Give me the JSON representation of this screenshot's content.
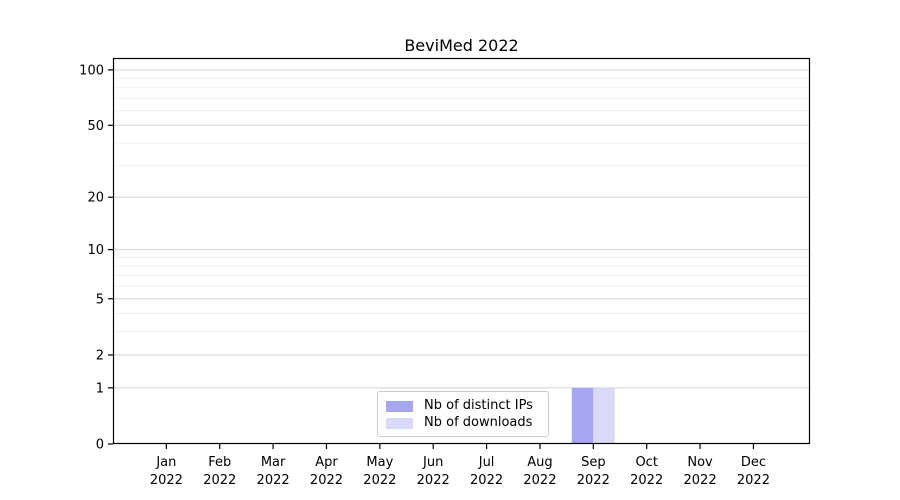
{
  "chart_data": {
    "type": "bar",
    "title": "BeviMed 2022",
    "categories": [
      "Jan",
      "Feb",
      "Mar",
      "Apr",
      "May",
      "Jun",
      "Jul",
      "Aug",
      "Sep",
      "Oct",
      "Nov",
      "Dec"
    ],
    "x_year_label": "2022",
    "series": [
      {
        "name": "Nb of distinct IPs",
        "color": "#a5a5f0",
        "values": [
          0,
          0,
          0,
          0,
          0,
          0,
          0,
          0,
          1,
          0,
          0,
          0
        ]
      },
      {
        "name": "Nb of downloads",
        "color": "#dadaf8",
        "values": [
          0,
          0,
          0,
          0,
          0,
          0,
          0,
          0,
          1,
          0,
          0,
          0
        ]
      }
    ],
    "y_scale": "log1p",
    "ylim": [
      0,
      116
    ],
    "y_ticks": [
      0,
      1,
      2,
      5,
      10,
      20,
      50,
      100
    ],
    "y_minor_gridlines": [
      3,
      4,
      6,
      7,
      8,
      9,
      30,
      40,
      60,
      70,
      80,
      90
    ],
    "grid": "horizontal-major-and-minor",
    "legend_position": "lower-center",
    "colors": {
      "major_grid": "#d4d4d4",
      "minor_grid": "#efefef",
      "axis": "#000000",
      "text": "#000000",
      "background": "#ffffff"
    }
  }
}
